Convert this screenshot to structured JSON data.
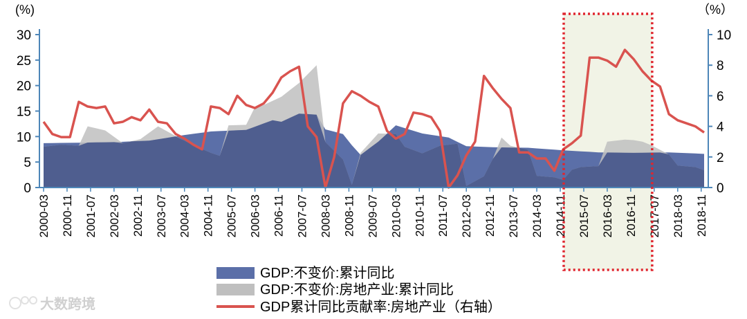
{
  "chart_data": {
    "type": "area",
    "y_left_unit": "(%)",
    "y_right_unit": "（%）",
    "y_left_ticks": [
      "0",
      "5",
      "10",
      "15",
      "20",
      "25",
      "30"
    ],
    "y_right_ticks": [
      "0",
      "2",
      "4",
      "6",
      "8",
      "10"
    ],
    "ylim_left": [
      0,
      30
    ],
    "ylim_right": [
      0,
      10
    ],
    "x_start": "2000-03",
    "x_step_quarters": 1,
    "x_tick_labels": [
      "2000-03",
      "2000-11",
      "2001-07",
      "2002-03",
      "2002-11",
      "2003-07",
      "2004-03",
      "2004-11",
      "2005-07",
      "2006-03",
      "2006-11",
      "2007-07",
      "2008-03",
      "2008-11",
      "2009-07",
      "2010-03",
      "2010-11",
      "2011-07",
      "2012-03",
      "2012-11",
      "2013-07",
      "2014-03",
      "2014-11",
      "2015-07",
      "2016-03",
      "2016-11",
      "2017-07",
      "2018-03",
      "2018-11"
    ],
    "grid": false,
    "legend_position": "bottom",
    "highlight": {
      "from": "2015-03",
      "to": "2017-03"
    },
    "series": [
      {
        "name": "GDP:不变价:累计同比",
        "kind": "area",
        "axis": "left",
        "color": "#5B6FA8",
        "points": [
          [
            "2000-03",
            8.7
          ],
          [
            "2001-03",
            8.8
          ],
          [
            "2002-03",
            8.9
          ],
          [
            "2003-03",
            9.2
          ],
          [
            "2004-03",
            10.3
          ],
          [
            "2004-12",
            11.0
          ],
          [
            "2005-12",
            11.3
          ],
          [
            "2006-09",
            13.2
          ],
          [
            "2006-12",
            12.9
          ],
          [
            "2007-06",
            14.5
          ],
          [
            "2007-12",
            14.3
          ],
          [
            "2008-03",
            11.4
          ],
          [
            "2008-09",
            10.5
          ],
          [
            "2008-12",
            8.3
          ],
          [
            "2009-03",
            6.4
          ],
          [
            "2009-09",
            9.0
          ],
          [
            "2010-03",
            12.2
          ],
          [
            "2010-12",
            10.6
          ],
          [
            "2011-09",
            9.8
          ],
          [
            "2012-03",
            8.1
          ],
          [
            "2012-12",
            7.9
          ],
          [
            "2013-12",
            7.8
          ],
          [
            "2014-12",
            7.3
          ],
          [
            "2015-12",
            6.9
          ],
          [
            "2016-12",
            6.8
          ],
          [
            "2017-12",
            6.9
          ],
          [
            "2018-12",
            6.6
          ]
        ]
      },
      {
        "name": "GDP:不变价:房地产业:累计同比",
        "kind": "area",
        "axis": "left",
        "color": "#BFBFBF",
        "points": [
          [
            "2000-03",
            8.0
          ],
          [
            "2000-09",
            8.4
          ],
          [
            "2001-03",
            8.2
          ],
          [
            "2001-06",
            12.0
          ],
          [
            "2001-12",
            11.2
          ],
          [
            "2002-06",
            8.7
          ],
          [
            "2002-12",
            9.5
          ],
          [
            "2003-06",
            12.0
          ],
          [
            "2003-12",
            10.1
          ],
          [
            "2004-06",
            8.3
          ],
          [
            "2004-12",
            6.8
          ],
          [
            "2005-03",
            6.2
          ],
          [
            "2005-06",
            12.2
          ],
          [
            "2005-12",
            12.3
          ],
          [
            "2006-03",
            15.8
          ],
          [
            "2006-06",
            16.2
          ],
          [
            "2006-12",
            17.8
          ],
          [
            "2007-06",
            20.5
          ],
          [
            "2007-12",
            24.0
          ],
          [
            "2008-03",
            8.9
          ],
          [
            "2008-09",
            5.5
          ],
          [
            "2008-12",
            0.5
          ],
          [
            "2009-03",
            6.8
          ],
          [
            "2009-09",
            10.6
          ],
          [
            "2010-03",
            10.5
          ],
          [
            "2010-06",
            8.0
          ],
          [
            "2010-12",
            6.7
          ],
          [
            "2011-06",
            8.2
          ],
          [
            "2011-12",
            8.6
          ],
          [
            "2012-03",
            0.3
          ],
          [
            "2012-09",
            2.2
          ],
          [
            "2012-12",
            5.6
          ],
          [
            "2013-03",
            9.8
          ],
          [
            "2013-06",
            8.2
          ],
          [
            "2013-12",
            7.4
          ],
          [
            "2014-03",
            2.3
          ],
          [
            "2014-09",
            2.0
          ],
          [
            "2014-12",
            1.5
          ],
          [
            "2015-03",
            3.5
          ],
          [
            "2015-06",
            4.0
          ],
          [
            "2015-12",
            4.2
          ],
          [
            "2016-03",
            9.0
          ],
          [
            "2016-09",
            9.4
          ],
          [
            "2016-12",
            9.3
          ],
          [
            "2017-03",
            9.0
          ],
          [
            "2017-06",
            8.3
          ],
          [
            "2017-12",
            6.5
          ],
          [
            "2018-03",
            4.3
          ],
          [
            "2018-09",
            4.0
          ],
          [
            "2018-12",
            3.4
          ]
        ]
      },
      {
        "name": "GDP累计同比贡献率:房地产业（右轴）",
        "kind": "line",
        "axis": "right",
        "color": "#D9534F",
        "points": [
          [
            "2000-03",
            4.3
          ],
          [
            "2000-06",
            3.5
          ],
          [
            "2000-09",
            3.3
          ],
          [
            "2000-12",
            3.3
          ],
          [
            "2001-03",
            5.6
          ],
          [
            "2001-06",
            5.3
          ],
          [
            "2001-09",
            5.2
          ],
          [
            "2001-12",
            5.3
          ],
          [
            "2002-03",
            4.2
          ],
          [
            "2002-06",
            4.3
          ],
          [
            "2002-09",
            4.6
          ],
          [
            "2002-12",
            4.4
          ],
          [
            "2003-03",
            5.1
          ],
          [
            "2003-06",
            4.3
          ],
          [
            "2003-09",
            4.2
          ],
          [
            "2003-12",
            3.5
          ],
          [
            "2004-03",
            3.2
          ],
          [
            "2004-06",
            2.8
          ],
          [
            "2004-09",
            2.5
          ],
          [
            "2004-12",
            5.3
          ],
          [
            "2005-03",
            5.2
          ],
          [
            "2005-06",
            4.8
          ],
          [
            "2005-09",
            6.0
          ],
          [
            "2005-12",
            5.4
          ],
          [
            "2006-03",
            5.2
          ],
          [
            "2006-06",
            5.5
          ],
          [
            "2006-09",
            6.2
          ],
          [
            "2006-12",
            7.2
          ],
          [
            "2007-03",
            7.6
          ],
          [
            "2007-06",
            7.9
          ],
          [
            "2007-09",
            4.0
          ],
          [
            "2007-12",
            3.3
          ],
          [
            "2008-03",
            0.0
          ],
          [
            "2008-06",
            2.0
          ],
          [
            "2008-09",
            5.5
          ],
          [
            "2008-12",
            6.3
          ],
          [
            "2009-03",
            6.0
          ],
          [
            "2009-06",
            5.6
          ],
          [
            "2009-09",
            5.3
          ],
          [
            "2009-12",
            3.7
          ],
          [
            "2010-03",
            3.2
          ],
          [
            "2010-06",
            3.5
          ],
          [
            "2010-09",
            4.9
          ],
          [
            "2010-12",
            4.8
          ],
          [
            "2011-03",
            4.6
          ],
          [
            "2011-06",
            3.7
          ],
          [
            "2011-09",
            0.0
          ],
          [
            "2011-12",
            0.8
          ],
          [
            "2012-03",
            2.1
          ],
          [
            "2012-06",
            3.0
          ],
          [
            "2012-09",
            7.3
          ],
          [
            "2012-12",
            6.5
          ],
          [
            "2013-03",
            5.8
          ],
          [
            "2013-06",
            5.2
          ],
          [
            "2013-09",
            2.3
          ],
          [
            "2013-12",
            2.3
          ],
          [
            "2014-03",
            1.9
          ],
          [
            "2014-06",
            1.9
          ],
          [
            "2014-09",
            1.1
          ],
          [
            "2014-12",
            2.5
          ],
          [
            "2015-03",
            2.9
          ],
          [
            "2015-06",
            3.4
          ],
          [
            "2015-09",
            8.5
          ],
          [
            "2015-12",
            8.5
          ],
          [
            "2016-03",
            8.3
          ],
          [
            "2016-06",
            7.9
          ],
          [
            "2016-09",
            9.0
          ],
          [
            "2016-12",
            8.4
          ],
          [
            "2017-03",
            7.6
          ],
          [
            "2017-06",
            7.0
          ],
          [
            "2017-09",
            6.6
          ],
          [
            "2017-12",
            4.8
          ],
          [
            "2018-03",
            4.4
          ],
          [
            "2018-06",
            4.2
          ],
          [
            "2018-09",
            4.0
          ],
          [
            "2018-12",
            3.6
          ]
        ]
      }
    ]
  },
  "watermark": "大数跨境",
  "colors": {
    "axis": "#4D86B8",
    "highlight_fill": "#F1F3E6",
    "highlight_border": "#E0252E"
  }
}
